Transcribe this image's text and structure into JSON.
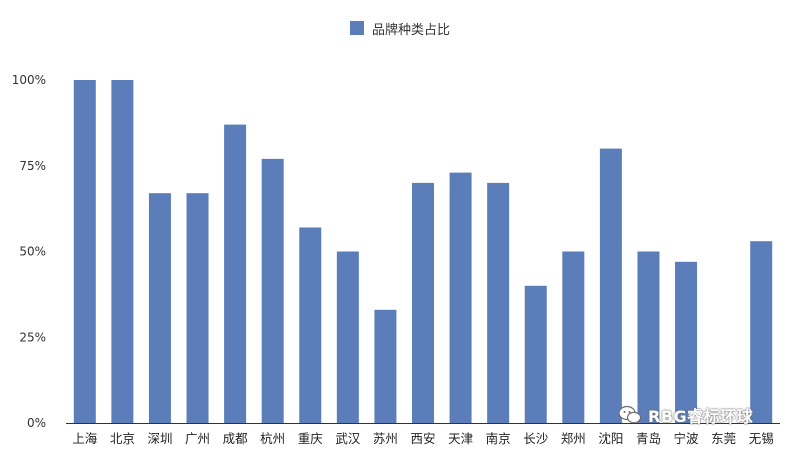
{
  "chart_data": {
    "type": "bar",
    "legend": "品牌种类占比",
    "legend_position": "top-center",
    "categories": [
      "上海",
      "北京",
      "深圳",
      "广州",
      "成都",
      "杭州",
      "重庆",
      "武汉",
      "苏州",
      "西安",
      "天津",
      "南京",
      "长沙",
      "郑州",
      "沈阳",
      "青岛",
      "宁波",
      "东莞",
      "无锡"
    ],
    "values": [
      100,
      100,
      67,
      67,
      87,
      77,
      57,
      50,
      33,
      70,
      73,
      70,
      40,
      50,
      80,
      50,
      47,
      0,
      53
    ],
    "ylim": [
      0,
      100
    ],
    "yticks": [
      "0%",
      "25%",
      "50%",
      "75%",
      "100%"
    ],
    "grid": false,
    "color": "#5b7db9"
  },
  "watermark": {
    "text": "RBG睿标环球",
    "icon": "wechat-icon"
  }
}
